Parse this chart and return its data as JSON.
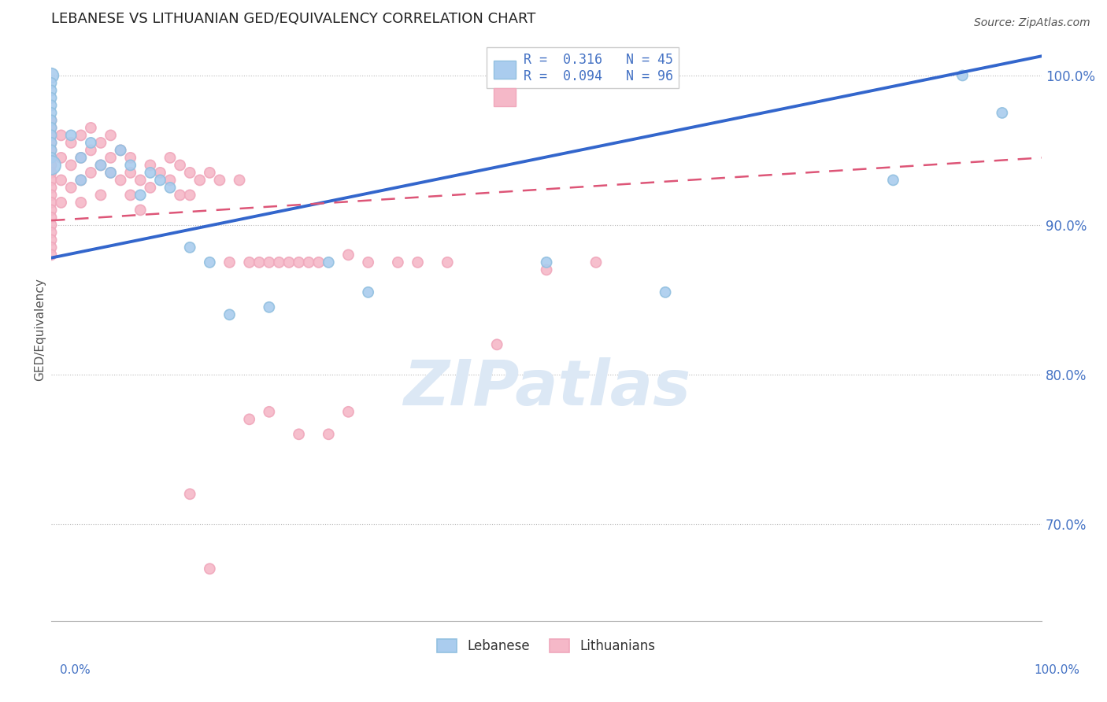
{
  "title": "LEBANESE VS LITHUANIAN GED/EQUIVALENCY CORRELATION CHART",
  "source": "Source: ZipAtlas.com",
  "ylabel": "GED/Equivalency",
  "r_lebanese": 0.316,
  "n_lebanese": 45,
  "r_lithuanian": 0.094,
  "n_lithuanian": 96,
  "ytick_labels": [
    "70.0%",
    "80.0%",
    "90.0%",
    "100.0%"
  ],
  "ytick_values": [
    0.7,
    0.8,
    0.9,
    1.0
  ],
  "xlim": [
    0.0,
    1.0
  ],
  "ylim": [
    0.635,
    1.025
  ],
  "legend_labels": [
    "Lebanese",
    "Lithuanians"
  ],
  "blue_color": "#92c0e0",
  "pink_color": "#f0a8bc",
  "blue_fill": "#aaccee",
  "pink_fill": "#f5b8c8",
  "blue_line_color": "#3366cc",
  "pink_line_color": "#dd5577",
  "title_color": "#222222",
  "axis_label_color": "#4472c4",
  "watermark_color": "#dce8f5",
  "background_color": "#ffffff",
  "leb_intercept": 0.878,
  "leb_slope": 0.135,
  "lit_intercept": 0.903,
  "lit_slope": 0.042,
  "lebanese_points": [
    [
      0.0,
      1.0,
      180
    ],
    [
      0.0,
      0.995,
      90
    ],
    [
      0.0,
      0.99,
      90
    ],
    [
      0.0,
      0.985,
      90
    ],
    [
      0.0,
      0.98,
      90
    ],
    [
      0.0,
      0.975,
      90
    ],
    [
      0.0,
      0.97,
      90
    ],
    [
      0.0,
      0.965,
      90
    ],
    [
      0.0,
      0.96,
      90
    ],
    [
      0.0,
      0.955,
      90
    ],
    [
      0.0,
      0.95,
      90
    ],
    [
      0.0,
      0.945,
      90
    ],
    [
      0.0,
      0.94,
      300
    ],
    [
      0.02,
      0.96,
      90
    ],
    [
      0.03,
      0.945,
      90
    ],
    [
      0.03,
      0.93,
      90
    ],
    [
      0.04,
      0.955,
      90
    ],
    [
      0.05,
      0.94,
      90
    ],
    [
      0.06,
      0.935,
      90
    ],
    [
      0.07,
      0.95,
      90
    ],
    [
      0.08,
      0.94,
      90
    ],
    [
      0.09,
      0.92,
      90
    ],
    [
      0.1,
      0.935,
      90
    ],
    [
      0.11,
      0.93,
      90
    ],
    [
      0.12,
      0.925,
      90
    ],
    [
      0.14,
      0.885,
      90
    ],
    [
      0.16,
      0.875,
      90
    ],
    [
      0.18,
      0.84,
      90
    ],
    [
      0.22,
      0.845,
      90
    ],
    [
      0.28,
      0.875,
      90
    ],
    [
      0.32,
      0.855,
      90
    ],
    [
      0.5,
      0.875,
      90
    ],
    [
      0.62,
      0.855,
      90
    ],
    [
      0.85,
      0.93,
      90
    ],
    [
      0.92,
      1.0,
      90
    ],
    [
      0.96,
      0.975,
      90
    ]
  ],
  "lithuanian_points": [
    [
      0.0,
      0.97,
      90
    ],
    [
      0.0,
      0.965,
      90
    ],
    [
      0.0,
      0.96,
      90
    ],
    [
      0.0,
      0.955,
      90
    ],
    [
      0.0,
      0.95,
      90
    ],
    [
      0.0,
      0.945,
      90
    ],
    [
      0.0,
      0.94,
      90
    ],
    [
      0.0,
      0.935,
      90
    ],
    [
      0.0,
      0.93,
      90
    ],
    [
      0.0,
      0.925,
      90
    ],
    [
      0.0,
      0.92,
      90
    ],
    [
      0.0,
      0.915,
      90
    ],
    [
      0.0,
      0.91,
      90
    ],
    [
      0.0,
      0.905,
      90
    ],
    [
      0.0,
      0.9,
      90
    ],
    [
      0.0,
      0.895,
      90
    ],
    [
      0.0,
      0.89,
      90
    ],
    [
      0.0,
      0.885,
      90
    ],
    [
      0.0,
      0.88,
      90
    ],
    [
      0.01,
      0.96,
      90
    ],
    [
      0.01,
      0.945,
      90
    ],
    [
      0.01,
      0.93,
      90
    ],
    [
      0.01,
      0.915,
      90
    ],
    [
      0.02,
      0.955,
      90
    ],
    [
      0.02,
      0.94,
      90
    ],
    [
      0.02,
      0.925,
      90
    ],
    [
      0.03,
      0.96,
      90
    ],
    [
      0.03,
      0.945,
      90
    ],
    [
      0.03,
      0.93,
      90
    ],
    [
      0.03,
      0.915,
      90
    ],
    [
      0.04,
      0.965,
      90
    ],
    [
      0.04,
      0.95,
      90
    ],
    [
      0.04,
      0.935,
      90
    ],
    [
      0.05,
      0.955,
      90
    ],
    [
      0.05,
      0.94,
      90
    ],
    [
      0.05,
      0.92,
      90
    ],
    [
      0.06,
      0.96,
      90
    ],
    [
      0.06,
      0.945,
      90
    ],
    [
      0.06,
      0.935,
      90
    ],
    [
      0.07,
      0.95,
      90
    ],
    [
      0.07,
      0.93,
      90
    ],
    [
      0.08,
      0.945,
      90
    ],
    [
      0.08,
      0.935,
      90
    ],
    [
      0.08,
      0.92,
      90
    ],
    [
      0.09,
      0.93,
      90
    ],
    [
      0.09,
      0.91,
      90
    ],
    [
      0.1,
      0.94,
      90
    ],
    [
      0.1,
      0.925,
      90
    ],
    [
      0.11,
      0.935,
      90
    ],
    [
      0.12,
      0.945,
      90
    ],
    [
      0.12,
      0.93,
      90
    ],
    [
      0.13,
      0.94,
      90
    ],
    [
      0.13,
      0.92,
      90
    ],
    [
      0.14,
      0.935,
      90
    ],
    [
      0.14,
      0.92,
      90
    ],
    [
      0.15,
      0.93,
      90
    ],
    [
      0.16,
      0.935,
      90
    ],
    [
      0.17,
      0.93,
      90
    ],
    [
      0.18,
      0.875,
      90
    ],
    [
      0.19,
      0.93,
      90
    ],
    [
      0.2,
      0.875,
      90
    ],
    [
      0.21,
      0.875,
      90
    ],
    [
      0.22,
      0.875,
      90
    ],
    [
      0.23,
      0.875,
      90
    ],
    [
      0.24,
      0.875,
      90
    ],
    [
      0.25,
      0.875,
      90
    ],
    [
      0.26,
      0.875,
      90
    ],
    [
      0.27,
      0.875,
      90
    ],
    [
      0.3,
      0.88,
      90
    ],
    [
      0.32,
      0.875,
      90
    ],
    [
      0.35,
      0.875,
      90
    ],
    [
      0.37,
      0.875,
      90
    ],
    [
      0.4,
      0.875,
      90
    ],
    [
      0.45,
      0.82,
      90
    ],
    [
      0.5,
      0.87,
      90
    ],
    [
      0.55,
      0.875,
      90
    ],
    [
      0.2,
      0.77,
      90
    ],
    [
      0.22,
      0.775,
      90
    ],
    [
      0.25,
      0.76,
      90
    ],
    [
      0.28,
      0.76,
      90
    ],
    [
      0.3,
      0.775,
      90
    ],
    [
      0.14,
      0.72,
      90
    ],
    [
      0.16,
      0.67,
      90
    ]
  ]
}
